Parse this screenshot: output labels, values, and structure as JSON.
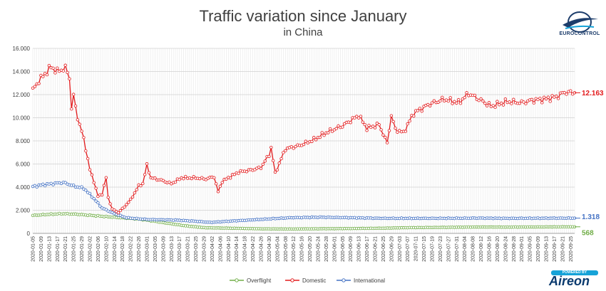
{
  "chart_data": {
    "type": "line",
    "title": "Traffic variation since January",
    "subtitle": "in China",
    "ylim": [
      0,
      16000
    ],
    "yticks": [
      0,
      2000,
      4000,
      6000,
      8000,
      10000,
      12000,
      14000,
      16000
    ],
    "ytick_labels": [
      "0",
      "2.000",
      "4.000",
      "6.000",
      "8.000",
      "10.000",
      "12.000",
      "14.000",
      "16.000"
    ],
    "x_start": "2020-01-05",
    "x_end": "2020-09-27",
    "xtick_labels": [
      "2020-01-05",
      "2020-01-09",
      "2020-01-13",
      "2020-01-17",
      "2020-01-21",
      "2020-01-25",
      "2020-01-29",
      "2020-02-02",
      "2020-02-06",
      "2020-02-10",
      "2020-02-14",
      "2020-02-18",
      "2020-02-22",
      "2020-02-26",
      "2020-03-01",
      "2020-03-05",
      "2020-03-09",
      "2020-03-13",
      "2020-03-17",
      "2020-03-21",
      "2020-03-25",
      "2020-03-29",
      "2020-04-02",
      "2020-04-06",
      "2020-04-10",
      "2020-04-14",
      "2020-04-18",
      "2020-04-22",
      "2020-04-26",
      "2020-04-30",
      "2020-05-04",
      "2020-05-08",
      "2020-05-12",
      "2020-05-16",
      "2020-05-20",
      "2020-05-24",
      "2020-05-28",
      "2020-06-01",
      "2020-06-05",
      "2020-06-09",
      "2020-06-13",
      "2020-06-17",
      "2020-06-21",
      "2020-06-25",
      "2020-06-29",
      "2020-07-03",
      "2020-07-07",
      "2020-07-11",
      "2020-07-15",
      "2020-07-19",
      "2020-07-23",
      "2020-07-27",
      "2020-07-31",
      "2020-08-04",
      "2020-08-08",
      "2020-08-12",
      "2020-08-16",
      "2020-08-20",
      "2020-08-24",
      "2020-08-28",
      "2020-09-01",
      "2020-09-05",
      "2020-09-09",
      "2020-09-13",
      "2020-09-17",
      "2020-09-21",
      "2020-09-25"
    ],
    "grid": true,
    "legend_position": "bottom",
    "series": [
      {
        "name": "Overflight",
        "color": "#70ad47",
        "end_label": "568",
        "keypoints": [
          [
            "2020-01-05",
            1550
          ],
          [
            "2020-01-13",
            1650
          ],
          [
            "2020-01-20",
            1700
          ],
          [
            "2020-01-27",
            1650
          ],
          [
            "2020-02-03",
            1550
          ],
          [
            "2020-02-10",
            1450
          ],
          [
            "2020-02-17",
            1350
          ],
          [
            "2020-02-25",
            1250
          ],
          [
            "2020-03-01",
            1150
          ],
          [
            "2020-03-10",
            900
          ],
          [
            "2020-03-20",
            650
          ],
          [
            "2020-03-30",
            480
          ],
          [
            "2020-04-10",
            450
          ],
          [
            "2020-04-25",
            400
          ],
          [
            "2020-05-10",
            380
          ],
          [
            "2020-05-25",
            400
          ],
          [
            "2020-06-10",
            420
          ],
          [
            "2020-06-25",
            450
          ],
          [
            "2020-07-10",
            500
          ],
          [
            "2020-07-25",
            520
          ],
          [
            "2020-08-10",
            550
          ],
          [
            "2020-08-25",
            540
          ],
          [
            "2020-09-10",
            560
          ],
          [
            "2020-09-27",
            568
          ]
        ]
      },
      {
        "name": "Domestic",
        "color": "#e31a1c",
        "end_label": "12.163",
        "keypoints": [
          [
            "2020-01-05",
            12400
          ],
          [
            "2020-01-08",
            13200
          ],
          [
            "2020-01-11",
            13800
          ],
          [
            "2020-01-14",
            14400
          ],
          [
            "2020-01-17",
            14000
          ],
          [
            "2020-01-21",
            14300
          ],
          [
            "2020-01-23",
            13500
          ],
          [
            "2020-01-24",
            10800
          ],
          [
            "2020-01-25",
            11900
          ],
          [
            "2020-01-27",
            10000
          ],
          [
            "2020-01-30",
            8200
          ],
          [
            "2020-02-02",
            5500
          ],
          [
            "2020-02-04",
            4500
          ],
          [
            "2020-02-06",
            3200
          ],
          [
            "2020-02-08",
            3400
          ],
          [
            "2020-02-10",
            4800
          ],
          [
            "2020-02-11",
            3100
          ],
          [
            "2020-02-13",
            2100
          ],
          [
            "2020-02-16",
            1800
          ],
          [
            "2020-02-19",
            2300
          ],
          [
            "2020-02-22",
            2900
          ],
          [
            "2020-02-26",
            4100
          ],
          [
            "2020-02-28",
            4300
          ],
          [
            "2020-03-01",
            5900
          ],
          [
            "2020-03-03",
            4800
          ],
          [
            "2020-03-08",
            4600
          ],
          [
            "2020-03-13",
            4300
          ],
          [
            "2020-03-18",
            4800
          ],
          [
            "2020-03-25",
            4800
          ],
          [
            "2020-03-30",
            4700
          ],
          [
            "2020-04-03",
            4900
          ],
          [
            "2020-04-05",
            3600
          ],
          [
            "2020-04-07",
            4500
          ],
          [
            "2020-04-15",
            5300
          ],
          [
            "2020-04-22",
            5500
          ],
          [
            "2020-04-26",
            5700
          ],
          [
            "2020-04-30",
            6800
          ],
          [
            "2020-05-01",
            7400
          ],
          [
            "2020-05-03",
            5200
          ],
          [
            "2020-05-08",
            7300
          ],
          [
            "2020-05-15",
            7600
          ],
          [
            "2020-05-22",
            8100
          ],
          [
            "2020-05-28",
            8700
          ],
          [
            "2020-06-05",
            9300
          ],
          [
            "2020-06-13",
            10200
          ],
          [
            "2020-06-17",
            9100
          ],
          [
            "2020-06-23",
            9400
          ],
          [
            "2020-06-27",
            7800
          ],
          [
            "2020-06-29",
            10200
          ],
          [
            "2020-07-01",
            9000
          ],
          [
            "2020-07-05",
            8700
          ],
          [
            "2020-07-10",
            10400
          ],
          [
            "2020-07-18",
            11200
          ],
          [
            "2020-07-25",
            11600
          ],
          [
            "2020-08-01",
            11300
          ],
          [
            "2020-08-06",
            12100
          ],
          [
            "2020-08-12",
            11500
          ],
          [
            "2020-08-17",
            11000
          ],
          [
            "2020-08-25",
            11400
          ],
          [
            "2020-09-01",
            11300
          ],
          [
            "2020-09-06",
            11500
          ],
          [
            "2020-09-12",
            11600
          ],
          [
            "2020-09-18",
            11800
          ],
          [
            "2020-09-22",
            12200
          ],
          [
            "2020-09-27",
            12163
          ]
        ]
      },
      {
        "name": "International",
        "color": "#4472c4",
        "end_label": "1.318",
        "keypoints": [
          [
            "2020-01-05",
            4050
          ],
          [
            "2020-01-10",
            4200
          ],
          [
            "2020-01-15",
            4300
          ],
          [
            "2020-01-20",
            4400
          ],
          [
            "2020-01-25",
            4100
          ],
          [
            "2020-01-30",
            3900
          ],
          [
            "2020-02-03",
            3200
          ],
          [
            "2020-02-08",
            2200
          ],
          [
            "2020-02-14",
            1700
          ],
          [
            "2020-02-20",
            1350
          ],
          [
            "2020-03-01",
            1200
          ],
          [
            "2020-03-15",
            1150
          ],
          [
            "2020-03-25",
            1050
          ],
          [
            "2020-04-01",
            950
          ],
          [
            "2020-04-10",
            1050
          ],
          [
            "2020-04-25",
            1200
          ],
          [
            "2020-05-10",
            1350
          ],
          [
            "2020-05-25",
            1400
          ],
          [
            "2020-06-10",
            1350
          ],
          [
            "2020-06-25",
            1300
          ],
          [
            "2020-07-10",
            1300
          ],
          [
            "2020-07-25",
            1300
          ],
          [
            "2020-08-10",
            1320
          ],
          [
            "2020-08-25",
            1300
          ],
          [
            "2020-09-10",
            1310
          ],
          [
            "2020-09-27",
            1318
          ]
        ]
      }
    ]
  },
  "branding": {
    "top_logo_text": "EUROCONTROL",
    "bottom_logo_badge": "POWERED BY",
    "bottom_logo_text": "Aireon"
  }
}
